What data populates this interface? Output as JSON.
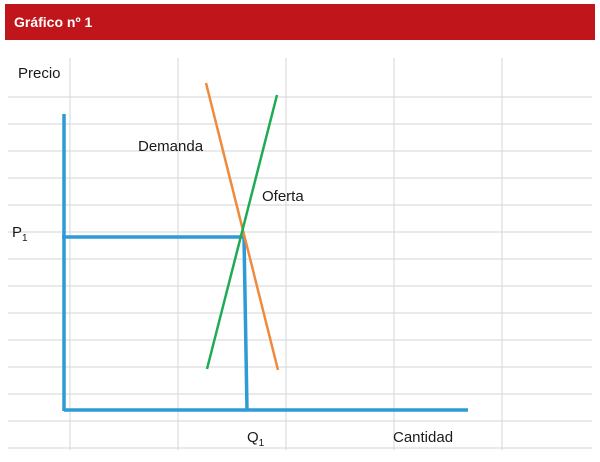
{
  "header": {
    "title": "Gráfico nº 1"
  },
  "labels": {
    "price": "Precio",
    "demand": "Demanda",
    "supply": "Oferta",
    "p1": {
      "main": "P",
      "sub": "1"
    },
    "q1": {
      "main": "Q",
      "sub": "1"
    },
    "quantity": "Cantidad"
  }
}
